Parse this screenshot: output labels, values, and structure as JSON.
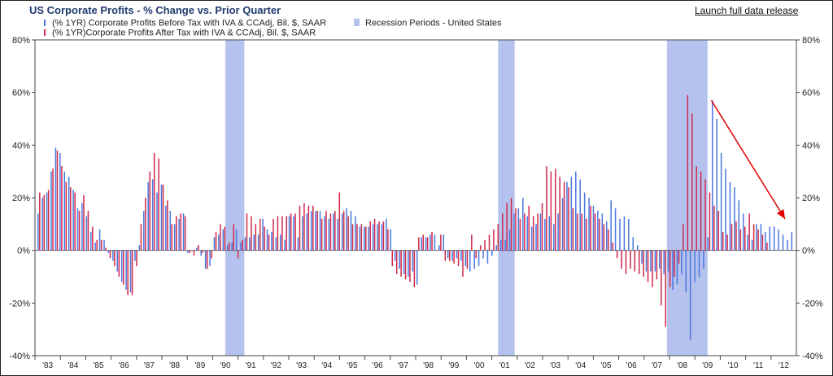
{
  "header": {
    "title": "US Corporate Profits - % Change vs. Prior Quarter",
    "launch_link": "Launch full data release"
  },
  "legend": {
    "series1": "(% 1YR) Corporate Profits Before Tax with IVA & CCAdj, Bil. $, SAAR",
    "series2": "(% 1YR)Corporate Profits After Tax with IVA & CCAdj, Bil. $, SAAR",
    "recession": "Recession Periods - United States"
  },
  "colors": {
    "before_tax": "#4a78e0",
    "after_tax": "#d02a4a",
    "recession": "#b6c2ee",
    "arrow": "#e00000"
  },
  "chart_data": {
    "type": "bar",
    "title": "US Corporate Profits - % Change vs. Prior Quarter",
    "ylim": [
      -40,
      80
    ],
    "yticks": [
      -40,
      -20,
      0,
      20,
      40,
      60,
      80
    ],
    "ytick_labels": [
      "-40%",
      "-20%",
      "0%",
      "20%",
      "40%",
      "60%",
      "80%"
    ],
    "x_start_year": 1983,
    "xtick_labels": [
      "'83",
      "'84",
      "'85",
      "'86",
      "'87",
      "'88",
      "'89",
      "'90",
      "'91",
      "'92",
      "'93",
      "'94",
      "'95",
      "'96",
      "'97",
      "'98",
      "'99",
      "'00",
      "'01",
      "'02",
      "'03",
      "'04",
      "'05",
      "'06",
      "'07",
      "'08",
      "'09",
      "'10",
      "'11",
      "'12"
    ],
    "recessions": [
      {
        "start": 1990.5,
        "end": 1991.25
      },
      {
        "start": 2001.25,
        "end": 2001.9
      },
      {
        "start": 2007.9,
        "end": 2009.5
      }
    ],
    "series": [
      {
        "name": "(% 1YR) Corporate Profits Before Tax with IVA & CCAdj, Bil. $, SAAR",
        "values": [
          14,
          20,
          22,
          30,
          39,
          37,
          30,
          28,
          23,
          16,
          18,
          13,
          7,
          3,
          8,
          4,
          -1,
          -4,
          -8,
          -12,
          -15,
          -16,
          -4,
          2,
          15,
          26,
          27,
          22,
          25,
          17,
          15,
          10,
          12,
          14,
          -1,
          0,
          1,
          -2,
          -7,
          -6,
          5,
          6,
          8,
          2,
          3,
          8,
          3,
          5,
          5,
          6,
          6,
          12,
          8,
          7,
          5,
          6,
          4,
          13,
          13,
          5,
          13,
          14,
          15,
          15,
          15,
          13,
          12,
          14,
          12,
          14,
          16,
          15,
          13,
          9,
          9,
          9,
          10,
          10,
          10,
          12,
          8,
          -4,
          -7,
          -9,
          -10,
          -8,
          -13,
          5,
          5,
          6,
          6,
          2,
          6,
          -3,
          -4,
          -3,
          -4,
          -6,
          -8,
          -7,
          -6,
          -3,
          -5,
          -2,
          2,
          4,
          4,
          8,
          14,
          16,
          20,
          13,
          9,
          10,
          14,
          12,
          13,
          10,
          14,
          20,
          26,
          28,
          30,
          27,
          22,
          20,
          17,
          15,
          14,
          11,
          19,
          16,
          12,
          13,
          12,
          5,
          2,
          -5,
          -8,
          -8,
          -8,
          -7,
          -9,
          -8,
          -15,
          -13,
          -9,
          -16,
          -34,
          -12,
          -10,
          -7,
          5,
          57,
          50,
          37,
          31,
          26,
          24,
          19,
          14,
          6,
          4,
          10,
          10,
          7,
          9,
          9,
          8,
          6,
          4,
          7
        ],
        "color": "#4a78e0"
      },
      {
        "name": "(% 1YR)Corporate Profits After Tax with IVA & CCAdj, Bil. $, SAAR",
        "values": [
          22,
          21,
          23,
          31,
          38,
          32,
          26,
          24,
          22,
          15,
          21,
          15,
          9,
          4,
          4,
          1,
          -3,
          -6,
          -10,
          -13,
          -17,
          -17,
          -6,
          10,
          20,
          30,
          37,
          35,
          25,
          19,
          10,
          13,
          14,
          13,
          -1,
          -2,
          2,
          -1,
          -7,
          -3,
          7,
          10,
          9,
          3,
          10,
          -3,
          4,
          14,
          13,
          10,
          12,
          9,
          6,
          12,
          13,
          13,
          13,
          14,
          14,
          17,
          18,
          17,
          17,
          15,
          12,
          15,
          14,
          15,
          22,
          15,
          13,
          10,
          10,
          10,
          9,
          11,
          12,
          11,
          11,
          8,
          -6,
          -9,
          -10,
          -11,
          -12,
          -14,
          5,
          6,
          5,
          7,
          0,
          6,
          -4,
          -4,
          -5,
          -6,
          -10,
          -7,
          6,
          -3,
          2,
          4,
          6,
          8,
          10,
          14,
          18,
          20,
          16,
          12,
          14,
          17,
          13,
          14,
          18,
          32,
          30,
          31,
          28,
          26,
          24,
          16,
          14,
          14,
          12,
          17,
          14,
          12,
          10,
          8,
          3,
          -3,
          -7,
          -9,
          -7,
          -8,
          -9,
          -10,
          -12,
          -14,
          -11,
          -21,
          -29,
          -14,
          -10,
          -5,
          10,
          59,
          52,
          32,
          30,
          27,
          22,
          17,
          15,
          7,
          6,
          10,
          11,
          8,
          9,
          14,
          10,
          8,
          6,
          3
        ],
        "color": "#d02a4a"
      }
    ],
    "annotation": {
      "type": "arrow",
      "from": [
        2009.65,
        57
      ],
      "to": [
        2012.55,
        12
      ]
    },
    "grid": false,
    "legend_position": "top-left"
  }
}
